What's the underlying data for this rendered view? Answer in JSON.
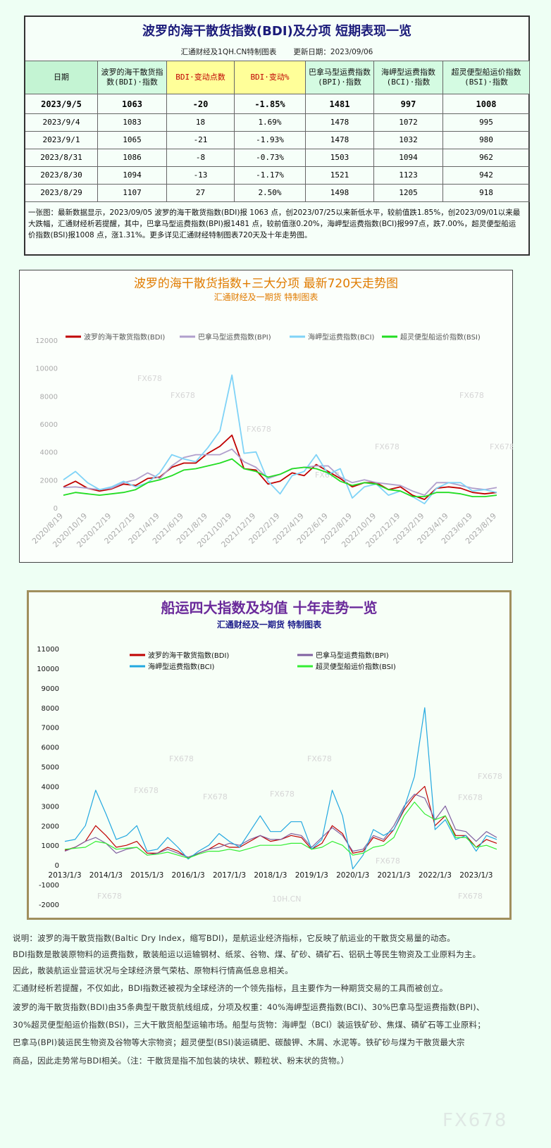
{
  "header": {
    "title": "波罗的海干散货指数(BDI)及分项 短期表现一览",
    "subtitle": "汇通财经及1QH.CN特制图表",
    "update": "更新日期：2023/09/06"
  },
  "table": {
    "columns": [
      "日期",
      "波罗的海干散货指数(BDI)·指数",
      "BDI·变动点数",
      "BDI·变动%",
      "巴拿马型运费指数(BPI)·指数",
      "海岬型运费指数(BCI)·指数",
      "超灵便型船运价指数(BSI)·指数"
    ],
    "rows": [
      [
        "2023/9/5",
        "1063",
        "-20",
        "-1.85%",
        "1481",
        "997",
        "1008"
      ],
      [
        "2023/9/4",
        "1083",
        "18",
        "1.69%",
        "1478",
        "1072",
        "995"
      ],
      [
        "2023/9/1",
        "1065",
        "-21",
        "-1.93%",
        "1478",
        "1032",
        "980"
      ],
      [
        "2023/8/31",
        "1086",
        "-8",
        "-0.73%",
        "1503",
        "1094",
        "962"
      ],
      [
        "2023/8/30",
        "1094",
        "-13",
        "-1.17%",
        "1521",
        "1123",
        "942"
      ],
      [
        "2023/8/29",
        "1107",
        "27",
        "2.50%",
        "1498",
        "1205",
        "918"
      ]
    ]
  },
  "summary": "一张图：最新数据显示，2023/09/05 波罗的海干散货指数(BDI)报 1063 点，创2023/07/25以来新低水平，较前值跌1.85%，创2023/09/01以来最大跌幅，汇通财经析若提醒，其中，巴拿马型运费指数(BPI)报1481 点，较前值涨0.20%，海岬型运费指数(BCI)报997点，跌7.00%，超灵便型船运价指数(BSI)报1008 点，涨1.31%。更多详见汇通财经特制图表720天及十年走势图。",
  "chart_data": [
    {
      "type": "line",
      "title": "波罗的海干散货指数+三大分项  最新720天走势图",
      "subtitle": "汇通财经及一期货  特制图表",
      "watermark": "FX678",
      "grid": false,
      "legend": "top",
      "categories": [
        "2020/8/19",
        null,
        "2020/10/19",
        null,
        "2020/12/19",
        null,
        "2021/2/19",
        null,
        "2021/4/19",
        null,
        "2021/6/19",
        null,
        "2021/8/19",
        null,
        "2021/10/19",
        null,
        "2021/12/19",
        null,
        "2022/2/19",
        null,
        "2022/4/19",
        null,
        "2022/6/19",
        null,
        "2022/8/19",
        null,
        "2022/10/19",
        null,
        "2022/12/19",
        null,
        "2023/2/19",
        null,
        "2023/4/19",
        null,
        "2023/6/19",
        null,
        "2023/8/19"
      ],
      "ylim": [
        0,
        12000
      ],
      "yticks": [
        0,
        2000,
        4000,
        6000,
        8000,
        10000,
        12000
      ],
      "series": [
        {
          "name": "波罗的海干散货指数(BDI)",
          "color": "#c00000",
          "values": [
            1500,
            1900,
            1400,
            1200,
            1350,
            1700,
            1600,
            2100,
            2200,
            2900,
            3200,
            3200,
            3900,
            4400,
            5200,
            2800,
            2700,
            1700,
            1900,
            2500,
            2300,
            3100,
            2600,
            2100,
            1500,
            1800,
            1800,
            1300,
            1500,
            900,
            600,
            1400,
            1500,
            1400,
            1100,
            1000,
            1100
          ]
        },
        {
          "name": "巴拿马型运费指数(BPI)",
          "color": "#b09fcc",
          "values": [
            1450,
            1500,
            1400,
            1300,
            1400,
            1800,
            2000,
            2500,
            2100,
            3000,
            3600,
            3800,
            3800,
            3800,
            4200,
            3300,
            2900,
            2100,
            2400,
            2800,
            2900,
            3000,
            3000,
            2200,
            1800,
            2000,
            1800,
            1700,
            1600,
            1200,
            900,
            1800,
            1800,
            1600,
            1400,
            1300,
            1450
          ]
        },
        {
          "name": "海岬型运费指数(BCI)",
          "color": "#7fd3f7",
          "values": [
            2000,
            2600,
            1800,
            1300,
            1500,
            1900,
            1500,
            1800,
            2500,
            3800,
            3500,
            3300,
            4300,
            5500,
            9500,
            3900,
            4000,
            1900,
            1000,
            2300,
            2600,
            3800,
            2400,
            2800,
            700,
            1500,
            1700,
            900,
            1200,
            800,
            300,
            1400,
            1800,
            1800,
            1200,
            1300,
            1100
          ]
        },
        {
          "name": "超灵便型船运价指数(BSI)",
          "color": "#22dd22",
          "values": [
            900,
            1100,
            1000,
            900,
            1000,
            1100,
            1300,
            1800,
            2000,
            2300,
            2700,
            2800,
            3000,
            3200,
            3500,
            2800,
            2600,
            2200,
            2400,
            2800,
            2900,
            2800,
            2500,
            1900,
            1600,
            1800,
            1700,
            1300,
            1200,
            800,
            800,
            1100,
            1100,
            1000,
            800,
            800,
            900
          ]
        }
      ]
    },
    {
      "type": "line",
      "title": "船运四大指数及均值 十年走势一览",
      "subtitle": "汇通财经及一期货 特制图表",
      "watermark": "FX678",
      "watermark2": "10H.CN",
      "grid": false,
      "legend": "top",
      "categories": [
        "2013/1/3",
        null,
        null,
        null,
        "2014/1/3",
        null,
        null,
        null,
        "2015/1/3",
        null,
        null,
        null,
        "2016/1/3",
        null,
        null,
        null,
        "2017/1/3",
        null,
        null,
        null,
        "2018/1/3",
        null,
        null,
        null,
        "2019/1/3",
        null,
        null,
        null,
        "2020/1/3",
        null,
        null,
        null,
        "2021/1/3",
        null,
        null,
        null,
        "2022/1/3",
        null,
        null,
        null,
        "2023/1/3",
        null,
        null
      ],
      "ylim": [
        -2000,
        11000
      ],
      "yticks": [
        -2000,
        -1000,
        0,
        1000,
        2000,
        3000,
        4000,
        5000,
        6000,
        7000,
        8000,
        9000,
        10000,
        11000
      ],
      "series": [
        {
          "name": "波罗的海干散货指数(BDI)",
          "color": "#c00000",
          "values": [
            750,
            900,
            1200,
            2000,
            1500,
            900,
            1000,
            1200,
            600,
            600,
            900,
            700,
            350,
            600,
            800,
            1100,
            900,
            900,
            1200,
            1500,
            1200,
            1300,
            1500,
            1400,
            800,
            1100,
            2000,
            1600,
            600,
            700,
            1400,
            1200,
            1800,
            2800,
            3500,
            4000,
            2000,
            2500,
            1500,
            1500,
            900,
            1300,
            1100
          ]
        },
        {
          "name": "巴拿马型运费指数(BPI)",
          "color": "#7f5fa0",
          "values": [
            700,
            900,
            1200,
            1400,
            1100,
            600,
            800,
            900,
            500,
            600,
            800,
            600,
            400,
            600,
            800,
            900,
            1100,
            1000,
            1300,
            1500,
            1300,
            1300,
            1600,
            1500,
            900,
            1400,
            1900,
            1500,
            700,
            800,
            1500,
            1300,
            2000,
            3000,
            3600,
            3400,
            2300,
            3000,
            1800,
            1700,
            1200,
            1700,
            1400
          ]
        },
        {
          "name": "海岬型运费指数(BCI)",
          "color": "#22a8e0",
          "values": [
            1200,
            1300,
            2000,
            3800,
            2600,
            1300,
            1500,
            2000,
            700,
            800,
            1400,
            900,
            300,
            700,
            1000,
            1600,
            1200,
            900,
            1700,
            2500,
            1700,
            1700,
            2200,
            2200,
            800,
            1300,
            3800,
            2500,
            -200,
            500,
            1800,
            1500,
            1800,
            2900,
            4500,
            8000,
            1800,
            2300,
            1300,
            1500,
            700,
            1500,
            1300
          ]
        },
        {
          "name": "超灵便型船运价指数(BSI)",
          "color": "#33ee33",
          "values": [
            800,
            850,
            900,
            1200,
            1100,
            800,
            850,
            900,
            500,
            550,
            650,
            500,
            350,
            550,
            700,
            700,
            800,
            700,
            850,
            1000,
            1000,
            1000,
            1100,
            1100,
            800,
            900,
            1200,
            1000,
            500,
            600,
            900,
            1000,
            1400,
            2500,
            3200,
            2600,
            2300,
            2500,
            1400,
            1400,
            900,
            1000,
            800
          ]
        }
      ]
    }
  ],
  "notes": [
    "说明：波罗的海干散货指数(Baltic Dry Index，缩写BDI)，是航运业经济指标，它反映了航运业的干散货交易量的动态。",
    "BDI指数是散装原物料的运费指数，散装船运以运输钢材、纸浆、谷物、煤、矿砂、磷矿石、铝矾土等民生物资及工业原料为主。",
    "因此，散装航运业营运状况与全球经济景气荣枯、原物料行情高低息息相关。",
    "汇通财经析若提醒，不仅如此，BDI指数还被视为全球经济的一个领先指标，且主要作为一种期货交易的工具而被创立。",
    "波罗的海干散货指数(BDI)由35条典型干散货航线组成，分项及权重：40%海岬型运费指数(BCI)、30%巴拿马型运费指数(BPI)、",
    "30%超灵便型船运价指数(BSI)，三大干散货船型运输市场。船型与货物：海岬型（BCI）装运铁矿砂、焦煤、磷矿石等工业原料；",
    "巴拿马(BPI)装运民生物资及谷物等大宗物资；超灵便型(BSI)装运磷肥、碳酸钾、木屑、水泥等。铁矿砂与煤为干散货最大宗",
    "商品，因此走势常与BDI相关。（注：干散货是指不加包装的块状、颗粒状、粉末状的货物。）"
  ],
  "logo": "FX678"
}
